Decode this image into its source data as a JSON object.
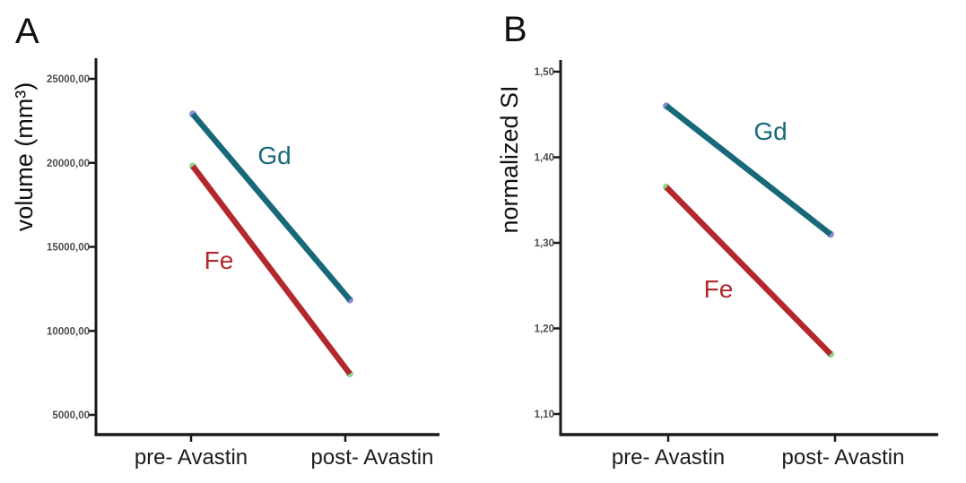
{
  "figure": {
    "background": "#ffffff",
    "panels": [
      {
        "letter": "A"
      },
      {
        "letter": "B"
      }
    ]
  },
  "colors": {
    "axis": "#1a1a1a",
    "tick_label": "#4d4d4d",
    "category_label": "#1c1c1c",
    "gd_line": "#17697a",
    "fe_line": "#b3282d",
    "gd_marker": "#8b8fd4",
    "fe_marker": "#8fd48f"
  },
  "chart_data": [
    {
      "type": "line",
      "panel": "A",
      "ylabel": "volume (mm³)",
      "categories": [
        "pre- Avastin",
        "post- Avastin"
      ],
      "ylim": [
        5000,
        25000
      ],
      "grid": false,
      "legend": "inline-labels",
      "yticks": {
        "values": [
          25000,
          20000,
          15000,
          10000,
          5000
        ],
        "labels": [
          "25000,00",
          "20000,00",
          "15000,00",
          "10000,00",
          "5000,00"
        ]
      },
      "series": [
        {
          "name": "Gd",
          "values": [
            22900,
            11850
          ],
          "color": "#17697a",
          "marker_color": "#8b8fd4"
        },
        {
          "name": "Fe",
          "values": [
            19800,
            7450
          ],
          "color": "#b3282d",
          "marker_color": "#8fd48f"
        }
      ]
    },
    {
      "type": "line",
      "panel": "B",
      "ylabel": "normalized SI",
      "categories": [
        "pre- Avastin",
        "post- Avastin"
      ],
      "ylim": [
        1.1,
        1.5
      ],
      "grid": false,
      "legend": "inline-labels",
      "yticks": {
        "values": [
          1.5,
          1.4,
          1.3,
          1.2,
          1.1
        ],
        "labels": [
          "1,50",
          "1,40",
          "1,30",
          "1,20",
          "1,10"
        ]
      },
      "series": [
        {
          "name": "Gd",
          "values": [
            1.46,
            1.31
          ],
          "color": "#17697a",
          "marker_color": "#8b8fd4"
        },
        {
          "name": "Fe",
          "values": [
            1.365,
            1.17
          ],
          "color": "#b3282d",
          "marker_color": "#8fd48f"
        }
      ]
    }
  ]
}
